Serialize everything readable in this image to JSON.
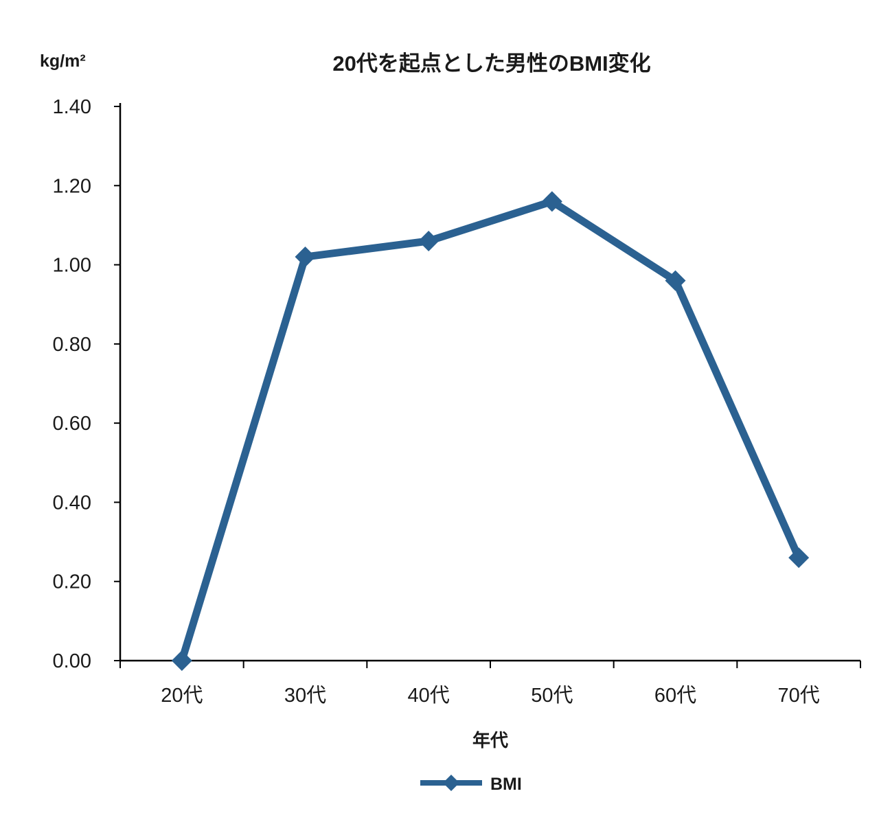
{
  "labels": {
    "title": "20代を起点とした男性のBMI変化",
    "y_unit": "kg/m²",
    "x_axis_title": "年代",
    "legend_bmi": "BMI"
  },
  "colors": {
    "line": "#2b6191",
    "axis": "#000000",
    "text": "#1a1a1a"
  },
  "chart_data": {
    "type": "line",
    "title": "20代を起点とした男性のBMI変化",
    "categories": [
      "20代",
      "30代",
      "40代",
      "50代",
      "60代",
      "70代"
    ],
    "series": [
      {
        "name": "BMI",
        "values": [
          0.0,
          1.02,
          1.06,
          1.16,
          0.96,
          0.26
        ]
      }
    ],
    "xlabel": "年代",
    "ylabel": "kg/m²",
    "ylim": [
      0.0,
      1.4
    ],
    "ytick_step": 0.2,
    "ytick_decimals": 2,
    "grid": false,
    "legend_position": "bottom",
    "marker": "diamond",
    "line_width": 11
  }
}
